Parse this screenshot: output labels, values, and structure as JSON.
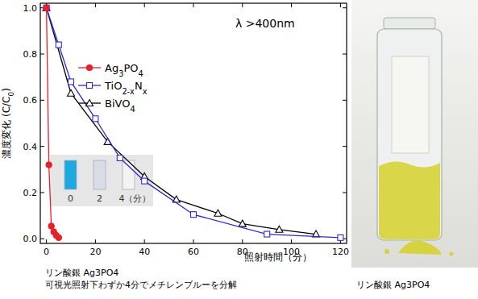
{
  "chart_data": {
    "type": "line",
    "x_label": "照射時間（分）",
    "y_label": "濃度変化 (C/C0)",
    "text": "λ >400nm",
    "xlim": [
      -2.5,
      122.5
    ],
    "ylim": [
      -0.02,
      1.02
    ],
    "xticks": [
      0,
      20,
      40,
      60,
      80,
      100,
      120
    ],
    "yticks": [
      {
        "value": 0,
        "label": "0.0"
      },
      0.2,
      0.4,
      0.6,
      0.8,
      {
        "value": 1,
        "label": "1.0"
      }
    ],
    "grid": false,
    "legend": "left",
    "series": [
      {
        "name": "Ag3PO4",
        "color": "#e8202a",
        "marker": "circle",
        "line_style": "solid",
        "x": [
          0,
          1,
          2,
          3,
          4,
          5
        ],
        "values": [
          1.0,
          0.32,
          0.055,
          0.03,
          0.015,
          0.005
        ]
      },
      {
        "name": "TiO2-xNx",
        "color": "#2b2bd9",
        "marker": "square",
        "line_style": "solid",
        "x": [
          0,
          5,
          10,
          20,
          30,
          40,
          60,
          90,
          120
        ],
        "values": [
          1.0,
          0.84,
          0.68,
          0.52,
          0.35,
          0.25,
          0.105,
          0.02,
          0.005
        ]
      },
      {
        "name": "BiVO4",
        "color": "#000000",
        "marker": "triangle",
        "line_style": "solid",
        "x": [
          0,
          10,
          25,
          40,
          53,
          70,
          80,
          95,
          110
        ],
        "values": [
          1.0,
          0.63,
          0.42,
          0.27,
          0.17,
          0.11,
          0.065,
          0.04,
          0.02
        ]
      }
    ],
    "inset_labels": [
      "0",
      "2",
      "4（分）"
    ],
    "captions": [
      "リン酸銀  Ag3PO4",
      "可視光照射下わずか4分でメチレンブルーを分解"
    ]
  },
  "photo": {
    "caption": "リン酸銀  Ag3PO4"
  }
}
